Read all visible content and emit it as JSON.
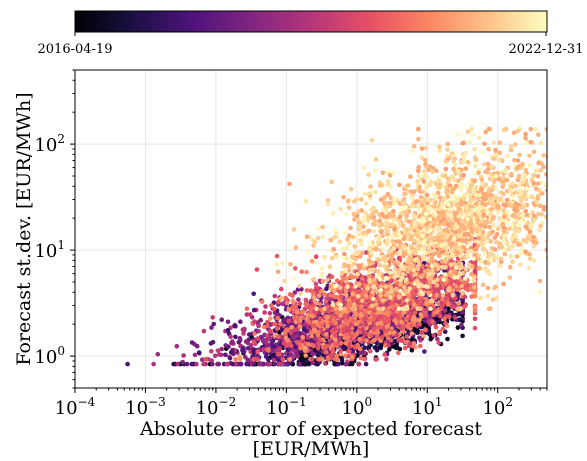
{
  "chart_data": {
    "type": "scatter",
    "title": "",
    "xlabel": [
      "Absolute error of expected forecast",
      "[EUR/MWh]"
    ],
    "ylabel": "Forecast st.dev.  [EUR/MWh]",
    "x_scale": "log",
    "y_scale": "log",
    "xlim": [
      0.0001,
      500
    ],
    "ylim": [
      0.5,
      500
    ],
    "x_ticks": [
      {
        "value": 0.0001,
        "base": "10",
        "exp": "−4"
      },
      {
        "value": 0.001,
        "base": "10",
        "exp": "−3"
      },
      {
        "value": 0.01,
        "base": "10",
        "exp": "−2"
      },
      {
        "value": 0.1,
        "base": "10",
        "exp": "−1"
      },
      {
        "value": 1,
        "base": "10",
        "exp": "0"
      },
      {
        "value": 10,
        "base": "10",
        "exp": "1"
      },
      {
        "value": 100,
        "base": "10",
        "exp": "2"
      }
    ],
    "y_ticks": [
      {
        "value": 1,
        "base": "10",
        "exp": "0"
      },
      {
        "value": 10,
        "base": "10",
        "exp": "1"
      },
      {
        "value": 100,
        "base": "10",
        "exp": "2"
      }
    ],
    "grid": true,
    "colormap": "magma",
    "colorbar": {
      "position": "top",
      "min_label": "2016-04-19",
      "max_label": "2022-12-31",
      "stops": [
        "#000004",
        "#1c1044",
        "#4f127b",
        "#812581",
        "#b5367a",
        "#e55064",
        "#fb8761",
        "#fec287",
        "#fcfdbf"
      ]
    },
    "series_description": {
      "color_variable": "forecast date",
      "clusters": [
        {
          "period_fraction": [
            0.0,
            0.2
          ],
          "x_range": [
            0.005,
            20
          ],
          "y_range": [
            0.9,
            3
          ]
        },
        {
          "period_fraction": [
            0.2,
            0.55
          ],
          "x_range": [
            0.001,
            20
          ],
          "y_range": [
            0.9,
            6
          ]
        },
        {
          "period_fraction": [
            0.55,
            0.8
          ],
          "x_range": [
            0.01,
            30
          ],
          "y_range": [
            1,
            10
          ]
        },
        {
          "period_fraction": [
            0.8,
            1.0
          ],
          "x_range": [
            0.05,
            400
          ],
          "y_range": [
            3,
            110
          ]
        }
      ]
    }
  }
}
